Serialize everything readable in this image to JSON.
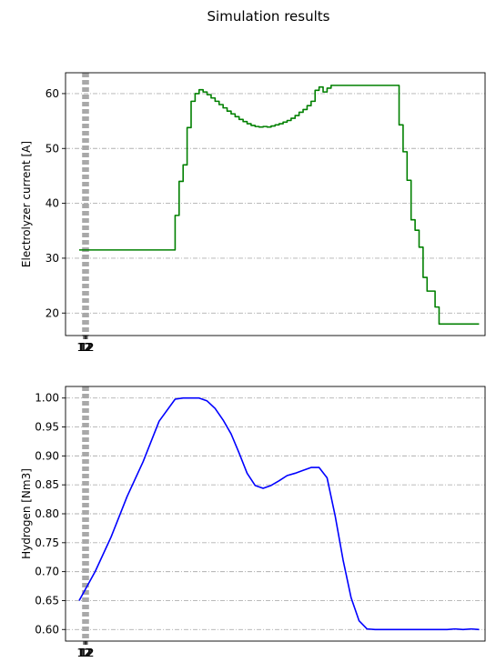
{
  "title": "Simulation results",
  "colors": {
    "line1": "#008000",
    "line2": "#0000ff",
    "grid": "#b0b0b0",
    "vlines": "#a9a9a9"
  },
  "chart_data": [
    {
      "type": "line",
      "drawstyle": "steps-post",
      "ylabel": "Electrolyzer current [A]",
      "xlabel": "",
      "yticks": [
        20,
        30,
        40,
        50,
        60
      ],
      "ylim": [
        15.9,
        63.8
      ],
      "grid": "y, dash-dot",
      "x_tick_labels_overlapping": "12",
      "series": [
        {
          "color": "#008000",
          "x": [
            0,
            1,
            2,
            3,
            4,
            5,
            6,
            7,
            8,
            9,
            10,
            11,
            12,
            13,
            14,
            15,
            16,
            17,
            18,
            19,
            20,
            21,
            22,
            23,
            24,
            25,
            26,
            27,
            28,
            29,
            30,
            31,
            32,
            33,
            34,
            35,
            36,
            37,
            38,
            39,
            40,
            41,
            42,
            43,
            44,
            45,
            46,
            47,
            48,
            49,
            50,
            51,
            52,
            53,
            54,
            55,
            56,
            57,
            58,
            59,
            60,
            61,
            62,
            63,
            64,
            65,
            66,
            67,
            68,
            69,
            70,
            71,
            72,
            73,
            74,
            75,
            76,
            77,
            78,
            79,
            80,
            81,
            82,
            83,
            84,
            85,
            86,
            87,
            88,
            89,
            90,
            91,
            92,
            93,
            94,
            95,
            96,
            97,
            98,
            99,
            100
          ],
          "y": [
            31.5,
            31.5,
            31.5,
            31.5,
            31.5,
            31.5,
            31.5,
            31.5,
            31.5,
            31.5,
            31.5,
            31.5,
            31.5,
            31.5,
            31.5,
            31.5,
            31.5,
            31.5,
            31.5,
            31.5,
            31.5,
            31.5,
            31.5,
            31.5,
            37.8,
            44,
            47,
            53.8,
            58.6,
            60,
            60.7,
            60.3,
            59.8,
            59.2,
            58.6,
            58,
            57.4,
            56.8,
            56.3,
            55.8,
            55.3,
            54.9,
            54.5,
            54.2,
            54,
            53.9,
            54,
            53.9,
            54.1,
            54.3,
            54.5,
            54.8,
            55.1,
            55.5,
            56,
            56.6,
            57.1,
            57.8,
            58.6,
            60.6,
            61.2,
            60.3,
            61,
            61.5,
            61.5,
            61.5,
            61.5,
            61.5,
            61.5,
            61.5,
            61.5,
            61.5,
            61.5,
            61.5,
            61.5,
            61.5,
            61.5,
            61.5,
            61.5,
            61.5,
            54.3,
            49.4,
            44.2,
            37,
            35.1,
            32,
            26.5,
            24,
            24,
            21.1,
            18,
            18,
            18,
            18,
            18,
            18,
            18,
            18,
            18,
            18,
            18
          ]
        }
      ]
    },
    {
      "type": "line",
      "ylabel": "Hydrogen [Nm3]",
      "xlabel": "",
      "yticks": [
        0.6,
        0.65,
        0.7,
        0.75,
        0.8,
        0.85,
        0.9,
        0.95,
        1.0
      ],
      "ytick_labels": [
        "0.60",
        "0.65",
        "0.70",
        "0.75",
        "0.80",
        "0.85",
        "0.90",
        "0.95",
        "1.00"
      ],
      "ylim": [
        0.58,
        1.02
      ],
      "grid": "y, dash-dot",
      "x_tick_labels_overlapping": "12",
      "series": [
        {
          "color": "#0000ff",
          "x": [
            0,
            4,
            8,
            12,
            16,
            20,
            24,
            26,
            28,
            30,
            32,
            34,
            36,
            38,
            40,
            42,
            44,
            46,
            48,
            50,
            52,
            54,
            56,
            58,
            60,
            62,
            64,
            66,
            68,
            70,
            72,
            74,
            76,
            78,
            80,
            82,
            84,
            86,
            88,
            90,
            92,
            94,
            96,
            98,
            100
          ],
          "y": [
            0.65,
            0.7,
            0.76,
            0.83,
            0.89,
            0.96,
            0.998,
            1.0,
            1.0,
            1.0,
            0.995,
            0.982,
            0.962,
            0.938,
            0.905,
            0.87,
            0.849,
            0.844,
            0.849,
            0.857,
            0.866,
            0.87,
            0.875,
            0.88,
            0.88,
            0.862,
            0.797,
            0.72,
            0.655,
            0.615,
            0.601,
            0.6,
            0.6,
            0.6,
            0.6,
            0.6,
            0.6,
            0.6,
            0.6,
            0.6,
            0.6,
            0.601,
            0.6,
            0.601,
            0.6
          ]
        }
      ]
    }
  ]
}
